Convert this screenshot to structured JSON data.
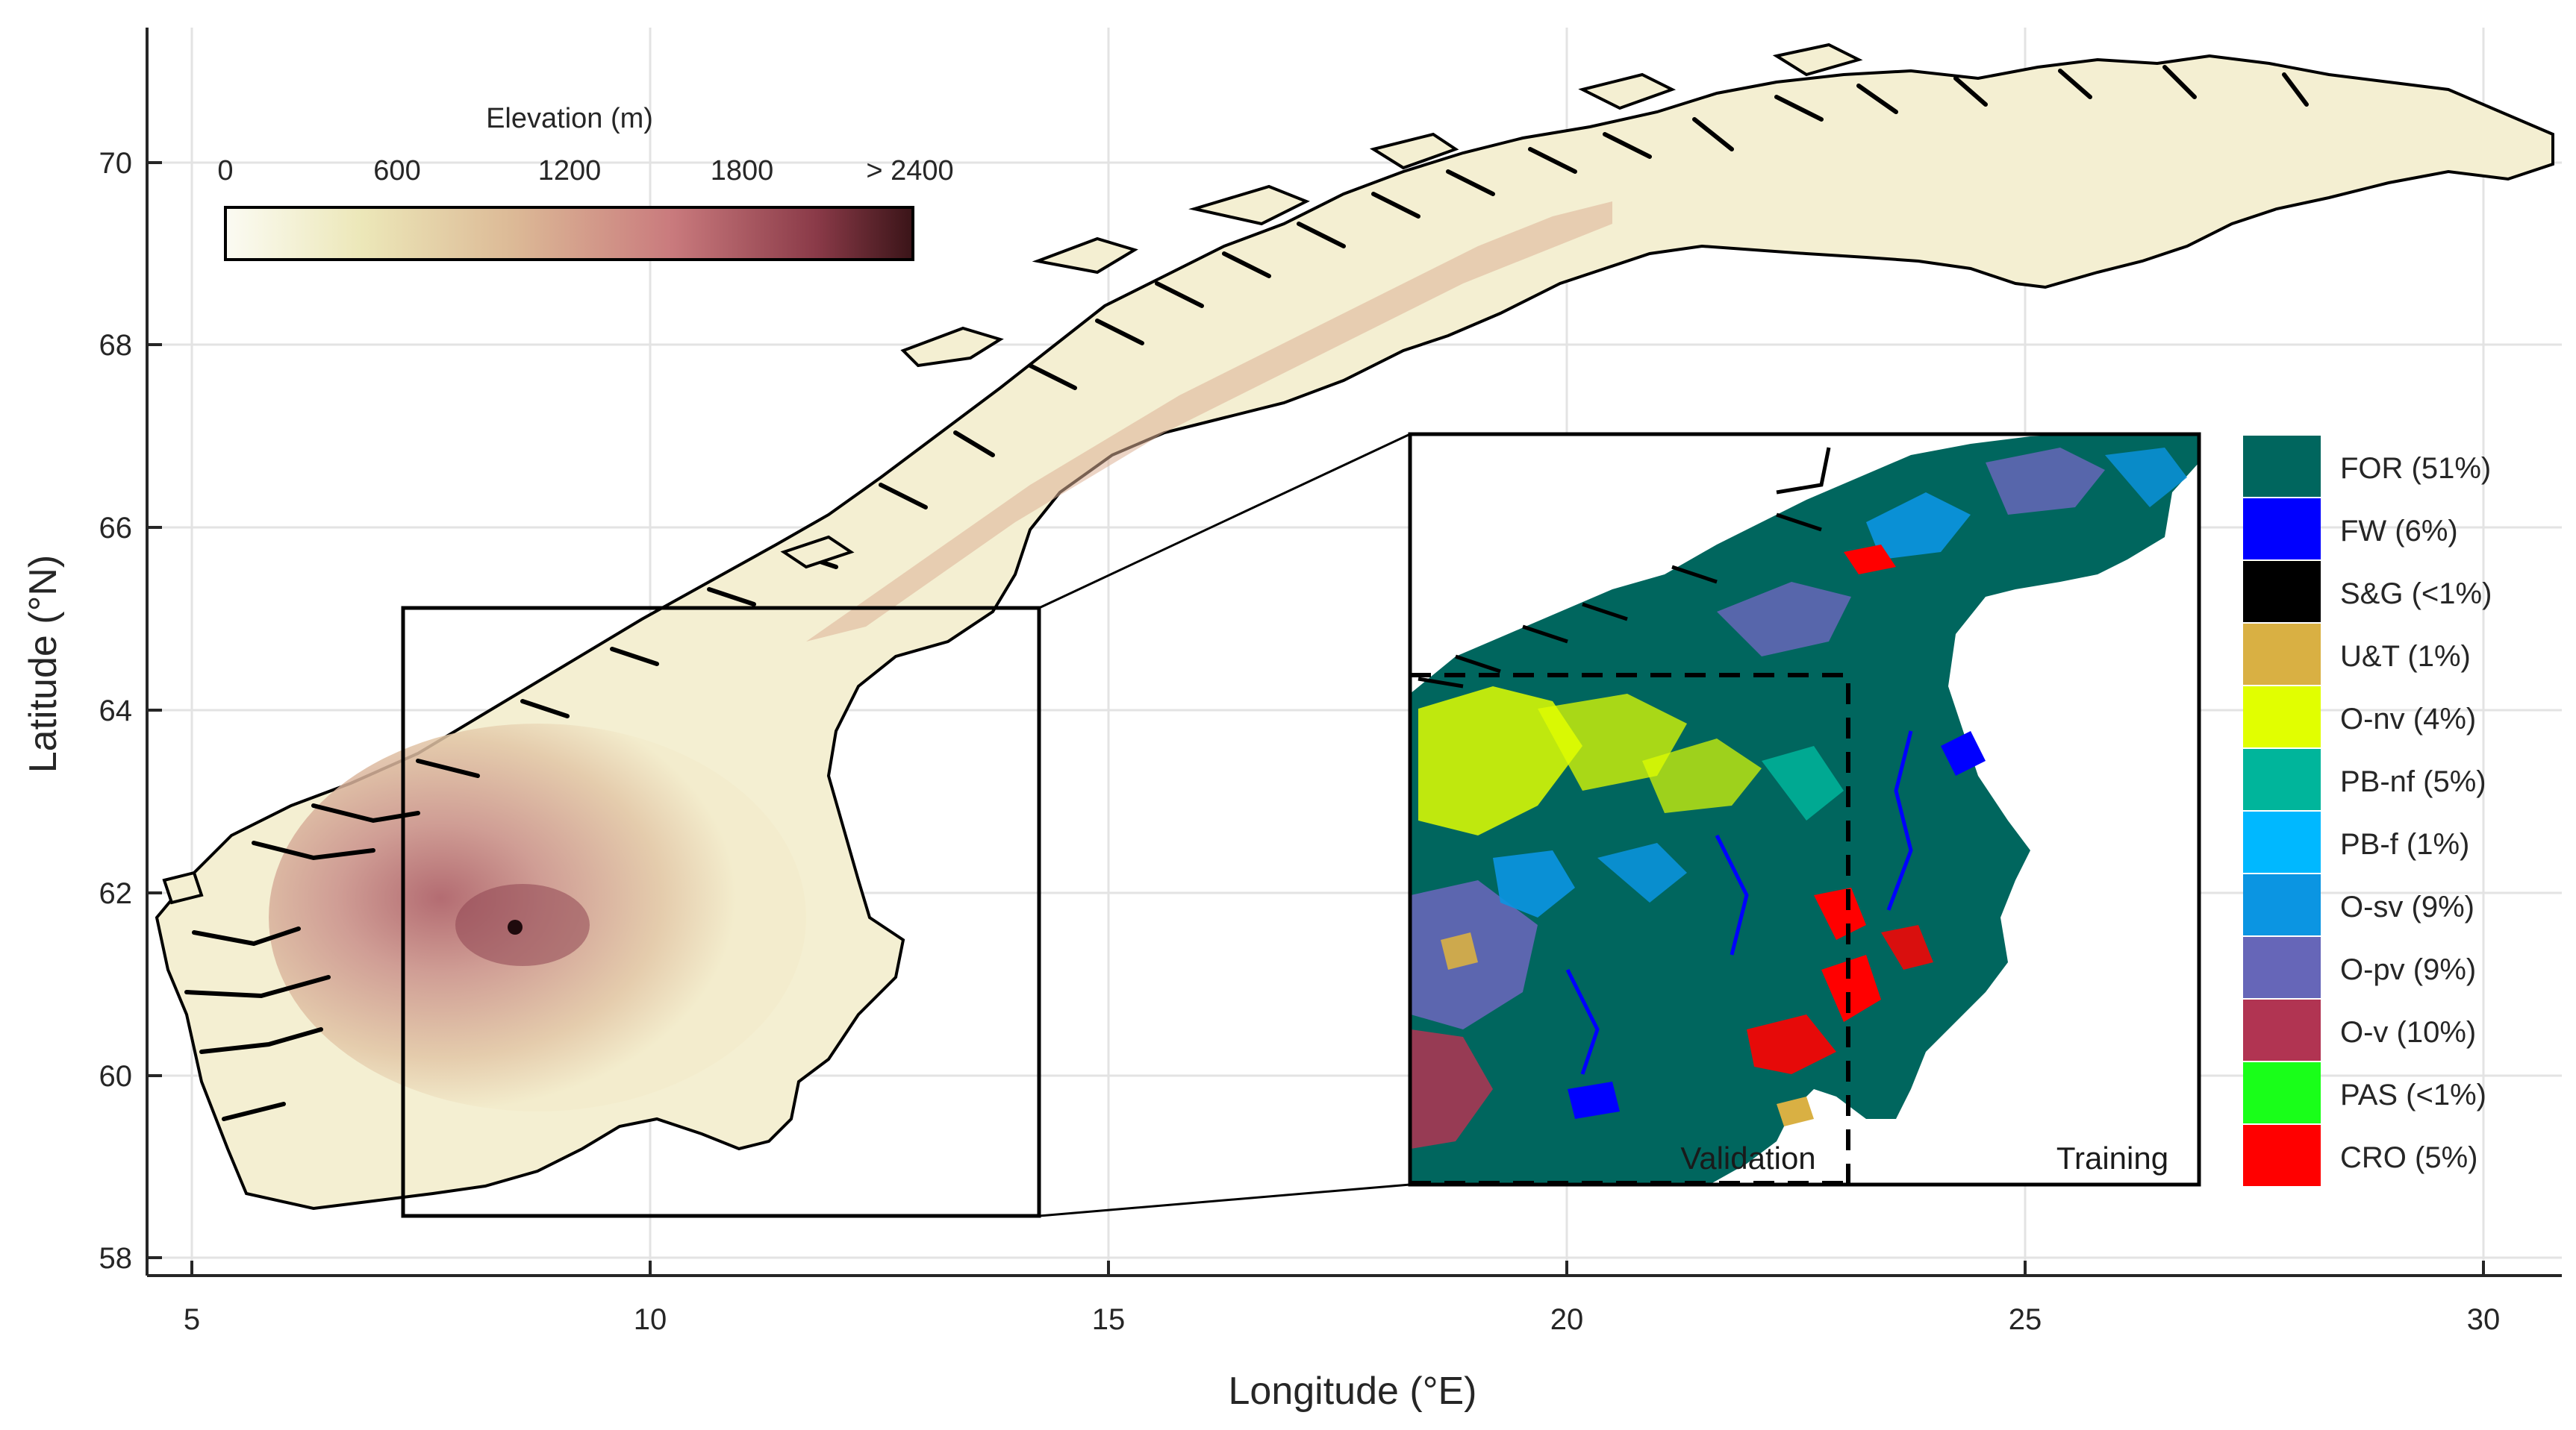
{
  "map": {
    "xlabel": "Longitude (°E)",
    "ylabel": "Latitude (°N)",
    "x_ticks": [
      "5",
      "10",
      "15",
      "20",
      "25",
      "30"
    ],
    "y_ticks": [
      "58",
      "60",
      "62",
      "64",
      "66",
      "68",
      "70"
    ],
    "grid": true,
    "lon_range": [
      4.5,
      30.9
    ],
    "lat_range": [
      57.7,
      71.5
    ]
  },
  "colorbar": {
    "title": "Elevation (m)",
    "ticks": [
      "0",
      "600",
      "1200",
      "1800",
      "> 2400"
    ],
    "colors": [
      "#fbfbf3",
      "#ece7b8",
      "#dcb996",
      "#c97a7d",
      "#8a3a48",
      "#3a1418"
    ]
  },
  "inset": {
    "left_label": "Validation",
    "right_label": "Training"
  },
  "legend": {
    "items": [
      {
        "label": "FOR (51%)",
        "color": "#00665e"
      },
      {
        "label": "FW (6%)",
        "color": "#0000ff"
      },
      {
        "label": "S&G (<1%)",
        "color": "#000000"
      },
      {
        "label": "U&T (1%)",
        "color": "#d9b043"
      },
      {
        "label": "O-nv (4%)",
        "color": "#e1ff00"
      },
      {
        "label": "PB-nf (5%)",
        "color": "#00b59b"
      },
      {
        "label": "PB-f (1%)",
        "color": "#00b8ff"
      },
      {
        "label": "O-sv (9%)",
        "color": "#0b95e2"
      },
      {
        "label": "O-pv (9%)",
        "color": "#6666b8"
      },
      {
        "label": "O-v (10%)",
        "color": "#b13452"
      },
      {
        "label": "PAS (<1%)",
        "color": "#19ff19"
      },
      {
        "label": "CRO (5%)",
        "color": "#ff0000"
      }
    ]
  }
}
